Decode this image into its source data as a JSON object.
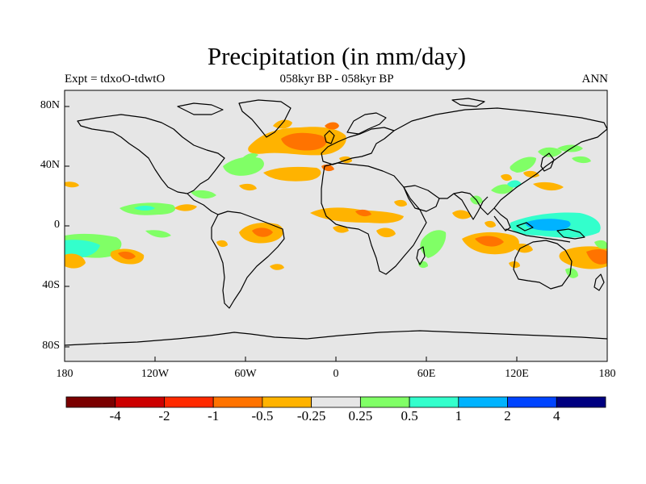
{
  "title": "Precipitation (in mm/day)",
  "subtitle_left": "Expt = tdxoO-tdwtO",
  "subtitle_center": "058kyr BP - 058kyr BP",
  "subtitle_right": "ANN",
  "lat_labels": [
    "80N",
    "40N",
    "0",
    "40S",
    "80S"
  ],
  "lon_labels": [
    "180",
    "120W",
    "60W",
    "0",
    "60E",
    "120E",
    "180"
  ],
  "colorbar": {
    "colors": [
      "#7a0000",
      "#cc0000",
      "#ff2a00",
      "#ff7300",
      "#ffb300",
      "#e6e6e6",
      "#80ff66",
      "#33ffcc",
      "#00b3ff",
      "#0044ff",
      "#000080"
    ],
    "labels": [
      "-4",
      "-2",
      "-1",
      "-0.5",
      "-0.25",
      "0.25",
      "0.5",
      "1",
      "2",
      "4"
    ]
  },
  "colors": {
    "ocean": "#e6e6e6",
    "coastline": "#000000",
    "drier": "#ffb300",
    "drier_strong": "#ff7300",
    "wetter": "#80ff66",
    "wetter_strong": "#33ffcc",
    "wettest": "#00b3ff"
  }
}
